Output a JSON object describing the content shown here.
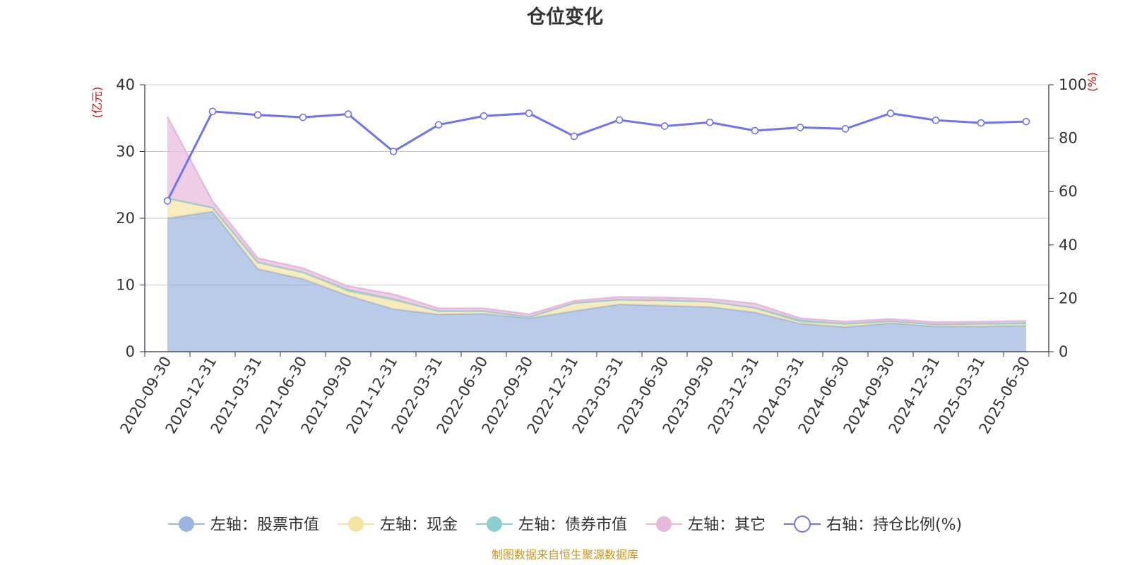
{
  "chart_data": {
    "type": "area",
    "title": "仓位变化",
    "source": "制图数据来自恒生聚源数据库",
    "left_unit": "(亿元)",
    "right_unit": "(%)",
    "left_ylim": [
      0,
      40
    ],
    "left_ticks": [
      "0",
      "10",
      "20",
      "30",
      "40"
    ],
    "right_ylim": [
      0,
      100
    ],
    "right_ticks": [
      "0",
      "20",
      "40",
      "60",
      "80",
      "100"
    ],
    "categories": [
      "2020-09-30",
      "2020-12-31",
      "2021-03-31",
      "2021-06-30",
      "2021-09-30",
      "2021-12-31",
      "2022-03-31",
      "2022-06-30",
      "2022-09-30",
      "2022-12-31",
      "2023-03-31",
      "2023-06-30",
      "2023-09-30",
      "2023-12-31",
      "2024-03-31",
      "2024-06-30",
      "2024-09-30",
      "2024-12-31",
      "2025-03-31",
      "2025-06-30"
    ],
    "series": [
      {
        "name": "左轴：股票市值",
        "axis": "left",
        "type": "stacked-area",
        "color": "#9bb5e0",
        "values": [
          20.0,
          21.0,
          12.4,
          10.9,
          8.4,
          6.4,
          5.6,
          5.7,
          5.0,
          6.1,
          7.1,
          6.9,
          6.7,
          5.9,
          4.2,
          3.7,
          4.3,
          3.8,
          3.8,
          3.9
        ]
      },
      {
        "name": "左轴：现金",
        "axis": "left",
        "type": "stacked-area",
        "color": "#f5e3a0",
        "values": [
          3.0,
          0.6,
          1.0,
          1.0,
          0.6,
          1.3,
          0.5,
          0.4,
          0.2,
          1.2,
          0.7,
          0.8,
          0.8,
          0.6,
          0.2,
          0.4,
          0.2,
          0.2,
          0.3,
          0.2
        ]
      },
      {
        "name": "左轴：债券市值",
        "axis": "left",
        "type": "stacked-area",
        "color": "#8ccfcf",
        "values": [
          0.0,
          0.0,
          0.0,
          0.0,
          0.3,
          0.2,
          0.0,
          0.0,
          0.0,
          0.0,
          0.0,
          0.0,
          0.0,
          0.1,
          0.3,
          0.1,
          0.1,
          0.1,
          0.1,
          0.2
        ]
      },
      {
        "name": "左轴：其它",
        "axis": "left",
        "type": "stacked-area",
        "color": "#e6b9dc",
        "values": [
          12.2,
          0.9,
          0.6,
          0.6,
          0.5,
          0.7,
          0.4,
          0.4,
          0.4,
          0.3,
          0.4,
          0.4,
          0.4,
          0.6,
          0.3,
          0.3,
          0.3,
          0.3,
          0.3,
          0.3
        ]
      },
      {
        "name": "右轴：持仓比例(%)",
        "axis": "right",
        "type": "line",
        "color": "#6e73f0",
        "values": [
          56.5,
          90.0,
          88.7,
          87.8,
          89.0,
          75.0,
          85.0,
          88.3,
          89.3,
          80.7,
          86.8,
          84.5,
          85.9,
          82.8,
          84.0,
          83.5,
          89.3,
          86.7,
          85.7,
          86.2
        ]
      }
    ],
    "legend_position": "bottom",
    "grid": true
  }
}
